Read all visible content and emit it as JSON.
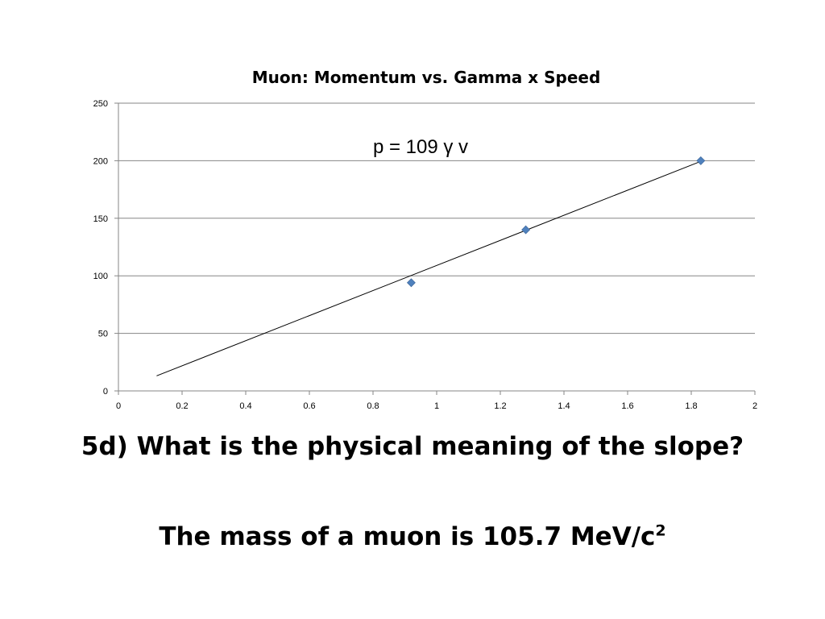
{
  "chart_data": {
    "type": "scatter",
    "title": "Muon: Momentum vs.  Gamma x Speed",
    "xlabel": "",
    "ylabel": "",
    "xlim": [
      0,
      2
    ],
    "ylim": [
      0,
      250
    ],
    "x_ticks": [
      "0",
      "0.2",
      "0.4",
      "0.6",
      "0.8",
      "1",
      "1.2",
      "1.4",
      "1.6",
      "1.8",
      "2"
    ],
    "y_ticks": [
      "0",
      "50",
      "100",
      "150",
      "200",
      "250"
    ],
    "grid": "horizontal",
    "marker": "diamond",
    "marker_color": "#4F81BD",
    "points": [
      {
        "x": 0.92,
        "y": 94
      },
      {
        "x": 1.28,
        "y": 140
      },
      {
        "x": 1.83,
        "y": 200
      }
    ],
    "trendline": {
      "x_range": [
        0.12,
        1.83
      ],
      "slope": 109,
      "intercept": 0,
      "color": "#000000"
    },
    "annotation": "p = 109 γ v"
  },
  "slide": {
    "question": "5d) What is the physical meaning of the slope?",
    "answer_main": "The mass of a muon is 105.7 MeV/c",
    "answer_sup": "2"
  }
}
